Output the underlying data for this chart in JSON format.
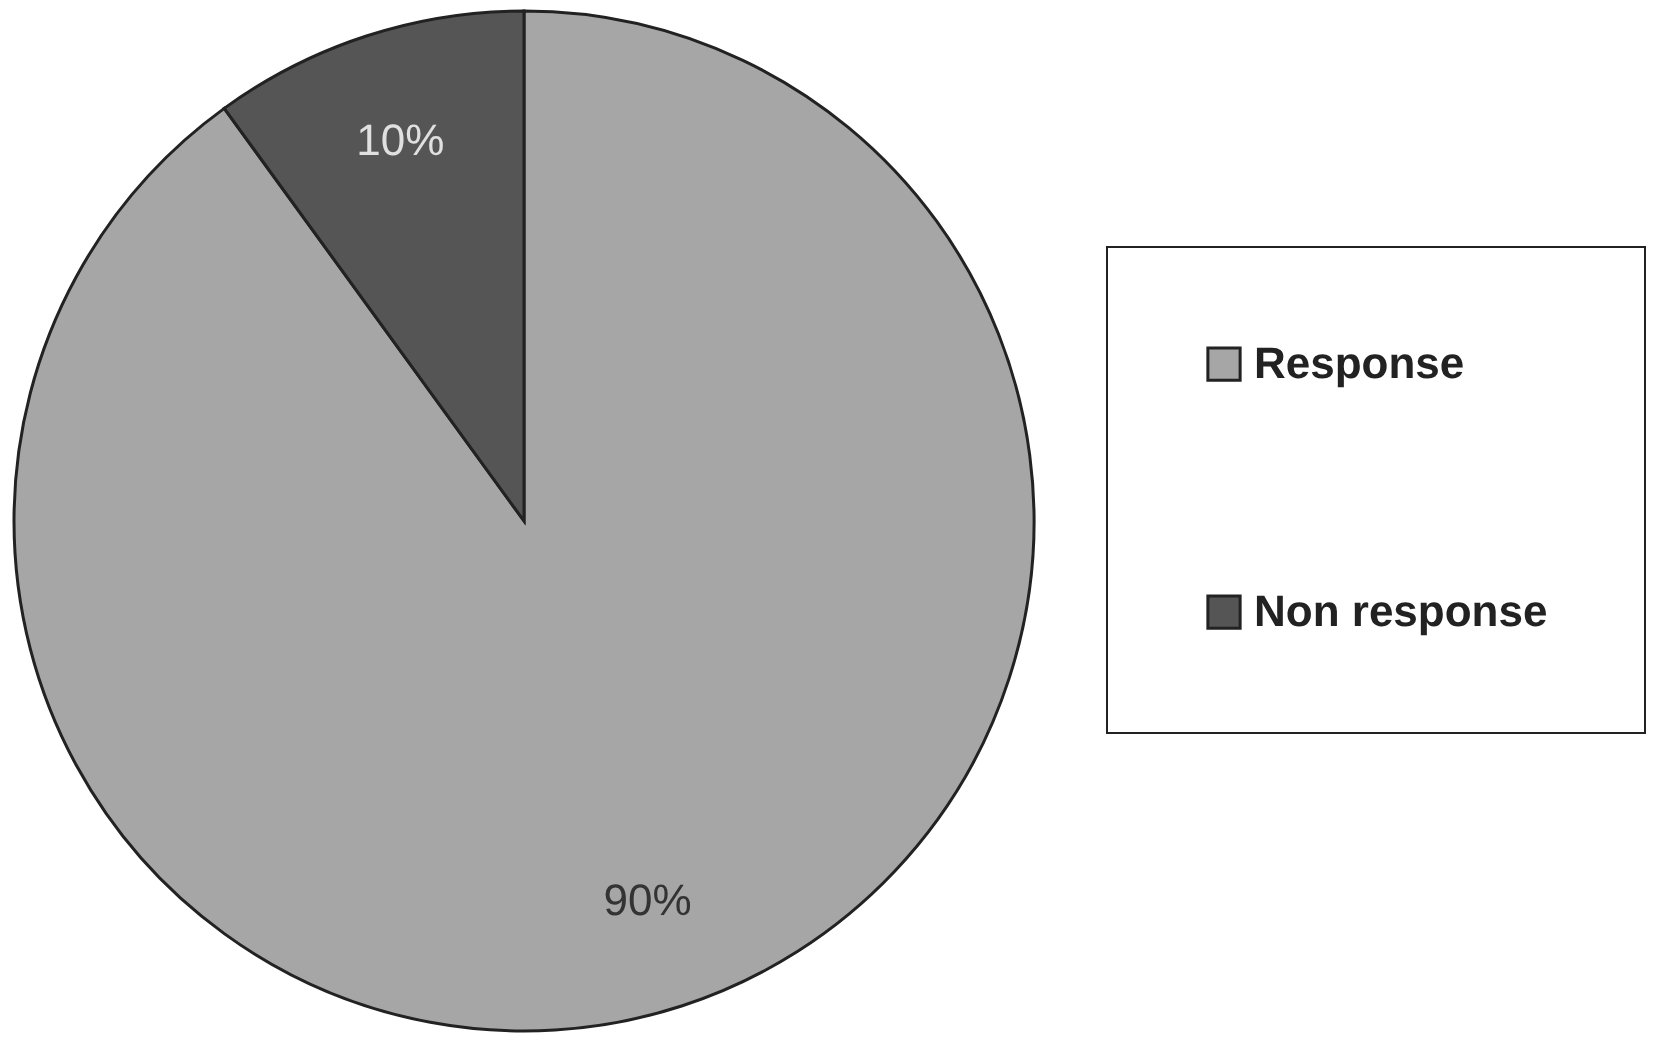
{
  "chart_data": {
    "type": "pie",
    "categories": [
      "Response",
      "Non response"
    ],
    "values": [
      90,
      10
    ],
    "colors": [
      "#a6a6a6",
      "#555555"
    ],
    "value_labels": [
      "90%",
      "10%"
    ],
    "legend": "right"
  }
}
